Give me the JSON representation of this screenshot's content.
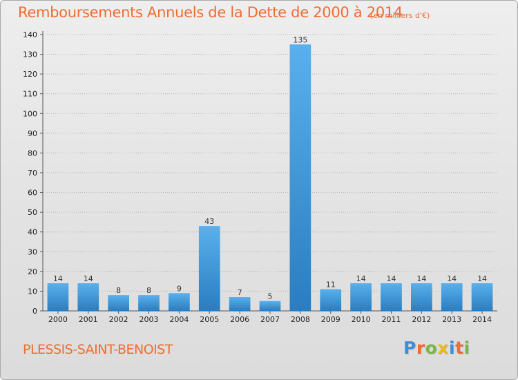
{
  "title": "Remboursements Annuels de la Dette de 2000 à 2014",
  "unit_note": "(en milliers d'€)",
  "commune": "PLESSIS-SAINT-BENOIST",
  "logo": {
    "letters": [
      "P",
      "r",
      "o",
      "x",
      "i",
      "t",
      "i"
    ],
    "colors": [
      "#3a8fd6",
      "#f06c30",
      "#7ab648",
      "#e8b820",
      "#3a8fd6",
      "#f06c30",
      "#7ab648"
    ]
  },
  "colors": {
    "bar_light": "#5ab0ec",
    "bar_dark": "#2a7dc0",
    "title": "#f06c30",
    "grid": "#b4b4b4"
  },
  "chart_data": {
    "type": "bar",
    "title": "Remboursements Annuels de la Dette de 2000 à 2014",
    "xlabel": "",
    "ylabel": "",
    "categories": [
      "2000",
      "2001",
      "2002",
      "2003",
      "2004",
      "2005",
      "2006",
      "2007",
      "2008",
      "2009",
      "2010",
      "2011",
      "2012",
      "2013",
      "2014"
    ],
    "values": [
      14,
      14,
      8,
      8,
      9,
      43,
      7,
      5,
      135,
      11,
      14,
      14,
      14,
      14,
      14
    ],
    "ylim": [
      0,
      140
    ],
    "yticks": [
      0,
      10,
      20,
      30,
      40,
      50,
      60,
      70,
      80,
      90,
      100,
      110,
      120,
      130,
      140
    ],
    "grid": true,
    "data_labels": true
  }
}
